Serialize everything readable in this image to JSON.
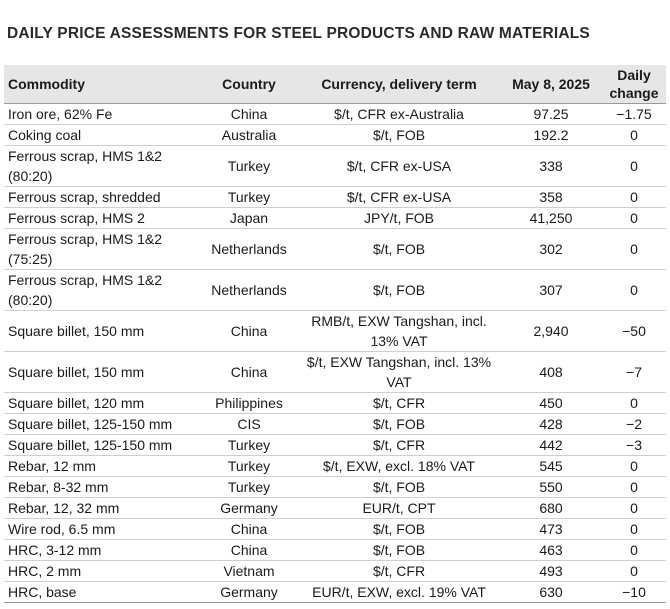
{
  "title": "DAILY PRICE ASSESSMENTS FOR STEEL PRODUCTS AND RAW MATERIALS",
  "headers": {
    "commodity": "Commodity",
    "country": "Country",
    "currency": "Currency, delivery term",
    "date": "May 8, 2025",
    "change_line1": "Daily",
    "change_line2": "change"
  },
  "rows": [
    {
      "commodity": "Iron ore, 62% Fe",
      "country": "China",
      "currency": "$/t, CFR ex-Australia",
      "price": "97.25",
      "change": "−1.75"
    },
    {
      "commodity": "Coking coal",
      "country": "Australia",
      "currency": "$/t, FOB",
      "price": "192.2",
      "change": "0"
    },
    {
      "commodity": "Ferrous scrap, HMS 1&2 (80:20)",
      "country": "Turkey",
      "currency": "$/t, CFR ex-USA",
      "price": "338",
      "change": "0"
    },
    {
      "commodity": "Ferrous scrap, shredded",
      "country": "Turkey",
      "currency": "$/t, CFR ex-USA",
      "price": "358",
      "change": "0"
    },
    {
      "commodity": "Ferrous scrap, HMS 2",
      "country": "Japan",
      "currency": "JPY/t, FOB",
      "price": "41,250",
      "change": "0"
    },
    {
      "commodity": "Ferrous scrap, HMS 1&2 (75:25)",
      "country": "Netherlands",
      "currency": "$/t, FOB",
      "price": "302",
      "change": "0"
    },
    {
      "commodity": "Ferrous scrap, HMS 1&2 (80:20)",
      "country": "Netherlands",
      "currency": "$/t, FOB",
      "price": "307",
      "change": "0"
    },
    {
      "commodity": "Square billet, 150 mm",
      "country": "China",
      "currency": "RMB/t, EXW Tangshan, incl. 13% VAT",
      "price": "2,940",
      "change": "−50"
    },
    {
      "commodity": "Square billet, 150 mm",
      "country": "China",
      "currency": "$/t, EXW Tangshan, incl. 13% VAT",
      "price": "408",
      "change": "−7"
    },
    {
      "commodity": "Square billet, 120 mm",
      "country": "Philippines",
      "currency": "$/t, CFR",
      "price": "450",
      "change": "0"
    },
    {
      "commodity": "Square billet, 125-150 mm",
      "country": "CIS",
      "currency": "$/t, FOB",
      "price": "428",
      "change": "−2"
    },
    {
      "commodity": "Square billet, 125-150 mm",
      "country": "Turkey",
      "currency": "$/t, CFR",
      "price": "442",
      "change": "−3"
    },
    {
      "commodity": "Rebar, 12 mm",
      "country": "Turkey",
      "currency": "$/t, EXW, excl. 18% VAT",
      "price": "545",
      "change": "0"
    },
    {
      "commodity": "Rebar, 8-32 mm",
      "country": "Turkey",
      "currency": "$/t, FOB",
      "price": "550",
      "change": "0"
    },
    {
      "commodity": "Rebar, 12, 32 mm",
      "country": "Germany",
      "currency": "EUR/t, CPT",
      "price": "680",
      "change": "0"
    },
    {
      "commodity": "Wire rod, 6.5 mm",
      "country": "China",
      "currency": "$/t, FOB",
      "price": "473",
      "change": "0"
    },
    {
      "commodity": "HRC, 3-12 mm",
      "country": "China",
      "currency": "$/t, FOB",
      "price": "463",
      "change": "0"
    },
    {
      "commodity": "HRC, 2 mm",
      "country": "Vietnam",
      "currency": "$/t, CFR",
      "price": "493",
      "change": "0"
    },
    {
      "commodity": "HRC, base",
      "country": "Germany",
      "currency": "EUR/t, EXW, excl. 19% VAT",
      "price": "630",
      "change": "−10"
    }
  ]
}
